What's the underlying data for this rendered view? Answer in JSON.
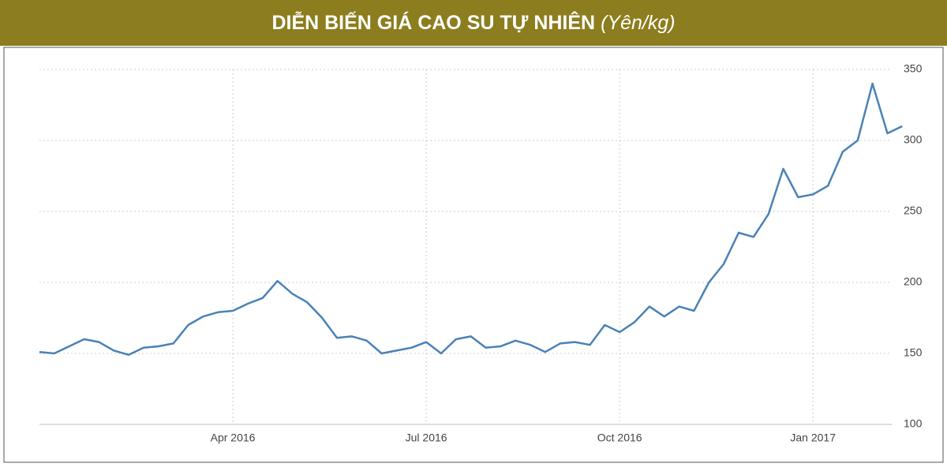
{
  "chart_data": {
    "type": "line",
    "title": "DIỄN BIẾN GIÁ CAO SU TỰ NHIÊN",
    "subtitle": "(Yên/kg)",
    "categories": [
      null,
      null,
      null,
      null,
      null,
      null,
      null,
      null,
      null,
      null,
      null,
      null,
      null,
      "Apr 2016",
      null,
      null,
      null,
      null,
      null,
      null,
      null,
      null,
      null,
      null,
      null,
      null,
      "Jul 2016",
      null,
      null,
      null,
      null,
      null,
      null,
      null,
      null,
      null,
      null,
      null,
      null,
      "Oct 2016",
      null,
      null,
      null,
      null,
      null,
      null,
      null,
      null,
      null,
      null,
      null,
      null,
      "Jan 2017",
      null,
      null,
      null,
      null,
      null,
      null
    ],
    "series": [
      {
        "color": "#4a82b7",
        "values": [
          151,
          150,
          155,
          160,
          158,
          152,
          149,
          154,
          155,
          157,
          170,
          176,
          179,
          180,
          185,
          189,
          201,
          192,
          186,
          175,
          161,
          162,
          159,
          150,
          152,
          154,
          158,
          150,
          160,
          162,
          154,
          155,
          159,
          156,
          151,
          157,
          158,
          156,
          170,
          165,
          172,
          183,
          176,
          183,
          180,
          200,
          213,
          235,
          232,
          248,
          280,
          260,
          262,
          268,
          292,
          300,
          340,
          305,
          310
        ]
      }
    ],
    "ylim": [
      100,
      350
    ],
    "yticks": [
      100,
      150,
      200,
      250,
      300,
      350
    ],
    "grid": true
  }
}
